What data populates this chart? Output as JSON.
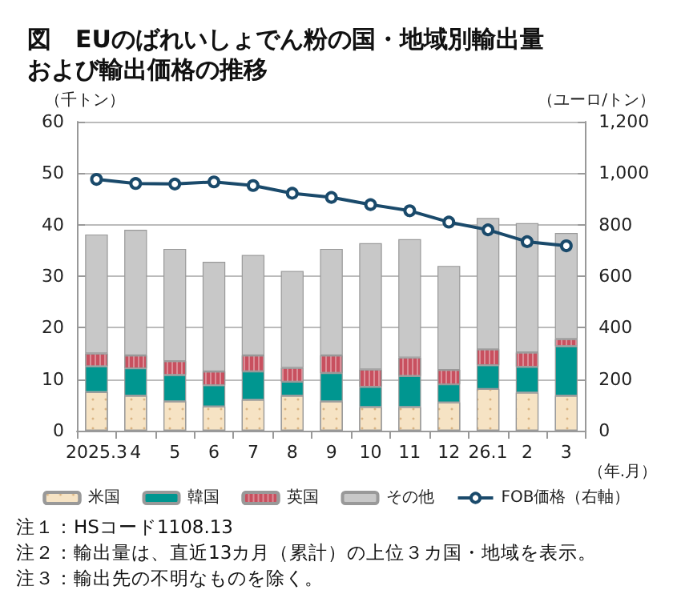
{
  "chart_data": {
    "type": "bar",
    "stacked": true,
    "title": "図　EUのばれいしょでん粉の国・地域別輸出量および輸出価格の推移",
    "ylabel": "（千トン）",
    "y2label": "（ユーロ/トン）",
    "xlabel": "（年.月）",
    "categories": [
      "2025.3",
      "4",
      "5",
      "6",
      "7",
      "8",
      "9",
      "10",
      "11",
      "12",
      "26.1",
      "2",
      "3"
    ],
    "series": [
      {
        "name": "米国",
        "color": "#f6e3c4",
        "values": [
          7.5,
          6.8,
          5.7,
          4.7,
          6.0,
          6.8,
          5.7,
          4.6,
          4.6,
          5.5,
          8.1,
          7.4,
          6.8
        ]
      },
      {
        "name": "韓国",
        "color": "#009690",
        "values": [
          5.0,
          5.3,
          5.1,
          4.1,
          5.5,
          2.7,
          5.5,
          3.9,
          6.0,
          3.5,
          4.6,
          5.0,
          9.6
        ]
      },
      {
        "name": "英国",
        "color": "#c8505f",
        "values": [
          2.5,
          2.5,
          2.7,
          2.7,
          3.1,
          2.7,
          3.4,
          3.4,
          3.6,
          2.8,
          3.1,
          2.8,
          1.4
        ]
      },
      {
        "name": "その他",
        "color": "#c8c8c8",
        "values": [
          23.1,
          24.4,
          21.8,
          21.3,
          19.5,
          18.8,
          20.7,
          24.5,
          23.0,
          20.2,
          25.5,
          25.1,
          20.6
        ]
      },
      {
        "name": "FOB価格（右軸）",
        "type": "line",
        "axis": "y2",
        "color": "#1a4a6b",
        "marker": "circle",
        "values": [
          976,
          960,
          958,
          966,
          952,
          922,
          906,
          878,
          854,
          810,
          780,
          734,
          718
        ]
      }
    ],
    "ylim": [
      0,
      60
    ],
    "yticks": [
      0,
      10,
      20,
      30,
      40,
      50,
      60
    ],
    "y2lim": [
      0,
      1200
    ],
    "y2ticks": [
      0,
      200,
      400,
      600,
      800,
      {
        "value": 1000,
        "label": "1,000"
      },
      {
        "value": 1200,
        "label": "1,200"
      }
    ],
    "grid": "y",
    "legend": "bottom",
    "annotations": [
      "注１：HSコード1108.13",
      "注２：輸出量は、直近13カ月（累計）の上位３カ国・地域を表示。",
      "注３：輸出先の不明なものを除く。"
    ]
  }
}
